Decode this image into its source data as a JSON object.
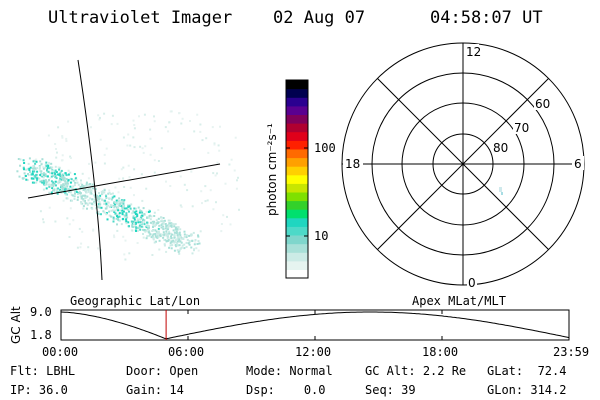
{
  "header": {
    "instrument": "Ultraviolet Imager",
    "date": "02 Aug 07",
    "time": "04:58:07 UT"
  },
  "colorbar": {
    "label": "photon cm⁻²s⁻¹",
    "ticks": [
      "100",
      "10"
    ],
    "colors": [
      "#ffffff",
      "#e6f4f0",
      "#ccebe6",
      "#a8e0d8",
      "#7fd6cc",
      "#4dd9c8",
      "#1fd6c0",
      "#00e06e",
      "#33d12a",
      "#7fe000",
      "#c8e600",
      "#ffff00",
      "#ffd000",
      "#ffa000",
      "#ff6a00",
      "#ff2000",
      "#e0001a",
      "#b00030",
      "#80005a",
      "#5a0090",
      "#2a0090",
      "#000050",
      "#000000"
    ]
  },
  "geo_plot": {
    "caption": "Geographic Lat/Lon"
  },
  "polar_plot": {
    "caption": "Apex MLat/MLT",
    "mlt_labels": {
      "top": "12",
      "left": "18",
      "right": "6",
      "bottom": "0"
    },
    "lat_labels": [
      "60",
      "70",
      "80"
    ]
  },
  "altitude_plot": {
    "ylabel": "GC Alt",
    "yticks": [
      "9.0",
      "1.8"
    ],
    "xticks": [
      "00:00",
      "06:00",
      "12:00",
      "18:00",
      "23:59"
    ],
    "current_time": "04:58"
  },
  "status": {
    "flt": {
      "label": "Flt:",
      "value": "LBHL"
    },
    "ip": {
      "label": "IP:",
      "value": "36.0"
    },
    "door": {
      "label": "Door:",
      "value": "Open"
    },
    "gain": {
      "label": "Gain:",
      "value": "14"
    },
    "mode": {
      "label": "Mode:",
      "value": "Normal"
    },
    "dsp": {
      "label": "Dsp:",
      "value": "0.0"
    },
    "gcalt": {
      "label": "GC Alt:",
      "value": "2.2 Re"
    },
    "seq": {
      "label": "Seq:",
      "value": "39"
    },
    "glat": {
      "label": "GLat:",
      "value": "72.4"
    },
    "glon": {
      "label": "GLon:",
      "value": "314.2"
    }
  }
}
